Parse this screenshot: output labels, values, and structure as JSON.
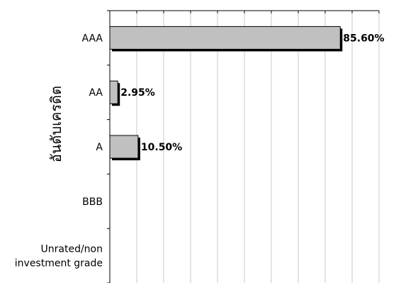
{
  "chart_data": {
    "type": "bar",
    "orientation": "horizontal",
    "categories": [
      "AAA",
      "AA",
      "A",
      "BBB",
      "Unrated/non investment grade"
    ],
    "category_lines": [
      [
        "AAA"
      ],
      [
        "AA"
      ],
      [
        "A"
      ],
      [
        "BBB"
      ],
      [
        "Unrated/non",
        "investment grade"
      ]
    ],
    "values": [
      85.6,
      2.95,
      10.5,
      0,
      0
    ],
    "value_labels": [
      "85.60%",
      "2.95%",
      "10.50%",
      "",
      ""
    ],
    "xlim": [
      0,
      100
    ],
    "x_ticks": 10,
    "xlabel": "",
    "ylabel": "อันดับเครดิต",
    "title": "",
    "grid": true,
    "bar_color": "#c0c0c0",
    "bar_shadow_color": "#000000",
    "grid_color": "#c8c8c8",
    "axis_color": "#000000"
  }
}
